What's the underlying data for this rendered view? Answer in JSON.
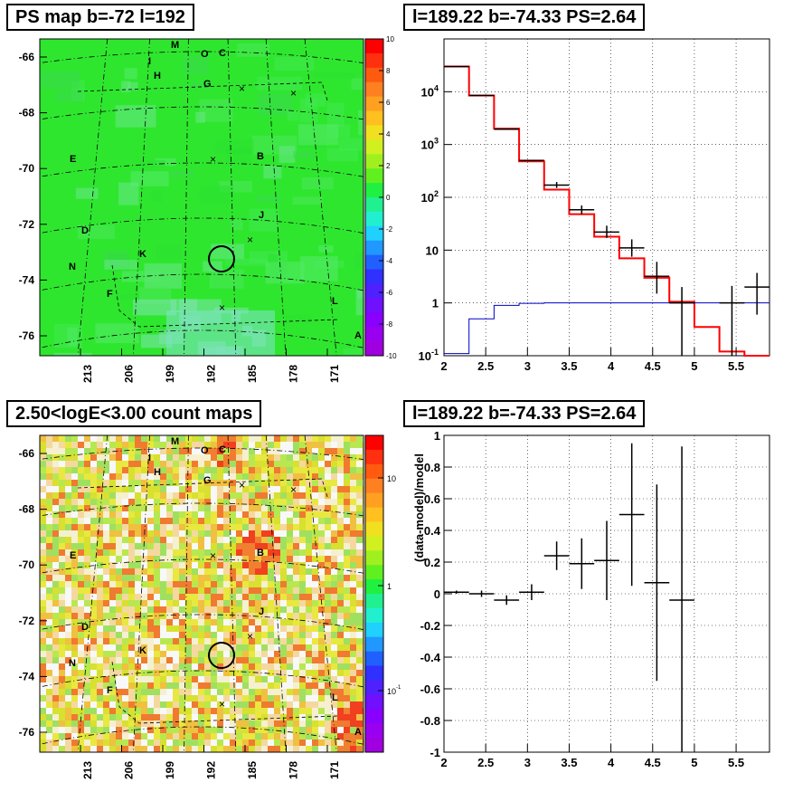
{
  "titles": {
    "tl": "PS map b=-72 l=192",
    "tr": "l=189.22 b=-74.33 PS=2.64",
    "bl": "2.50<logE<3.00 count maps",
    "br": "l=189.22 b=-74.33 PS=2.64"
  },
  "maps": {
    "y_ticks": [
      "-66",
      "-68",
      "-70",
      "-72",
      "-74",
      "-76"
    ],
    "x_ticks": [
      "213",
      "206",
      "199",
      "192",
      "185",
      "178",
      "171"
    ],
    "source_labels": [
      "M",
      "O",
      "C",
      "I",
      "H",
      "G",
      "E",
      "B",
      "J",
      "D",
      "K",
      "N",
      "F",
      "L",
      "A"
    ],
    "ps_colorbar_ticks": [
      "10",
      "8",
      "6",
      "4",
      "2",
      "0",
      "-2",
      "-4",
      "-6",
      "-8",
      "-10"
    ],
    "count_colorbar_ticks": [
      "10",
      "1",
      "10-1"
    ],
    "colors": {
      "ps_bg": "#2fe62f",
      "count_bg": "#d0e83a",
      "red": "#ff0000",
      "blue": "#0000c8"
    }
  },
  "chart_data": [
    {
      "type": "histogram",
      "title": "l=189.22 b=-74.33 PS=2.64",
      "xlim": [
        2,
        5.9
      ],
      "ylim": [
        0.1,
        100000
      ],
      "yscale": "log",
      "x_ticks": [
        "2",
        "2.5",
        "3",
        "3.5",
        "4",
        "4.5",
        "5",
        "5.5"
      ],
      "y_ticks": [
        "10-1",
        "1",
        "10",
        "102",
        "103",
        "104"
      ],
      "grid": true,
      "series": [
        {
          "color": "red",
          "edges": [
            2.0,
            2.3,
            2.6,
            2.9,
            3.2,
            3.5,
            3.8,
            4.1,
            4.4,
            4.7,
            5.0,
            5.3,
            5.6,
            5.9
          ],
          "values": [
            30000,
            8500,
            2000,
            480,
            140,
            48,
            18,
            7,
            3,
            1.05,
            0.35,
            0.12,
            0.07
          ]
        },
        {
          "color": "blue",
          "edges": [
            2.0,
            2.3,
            2.6,
            2.9,
            3.2,
            3.5,
            3.8,
            4.1,
            4.4,
            4.7,
            5.0,
            5.3,
            5.6,
            5.9
          ],
          "values": [
            0.11,
            0.5,
            0.9,
            0.98,
            1.0,
            1.0,
            1.0,
            1.0,
            1.0,
            1.0,
            1.0,
            1.0,
            1.0
          ]
        },
        {
          "color": "black",
          "points": [
            {
              "x": 2.15,
              "y": 30000,
              "dx": 0.15
            },
            {
              "x": 2.45,
              "y": 8500,
              "dx": 0.15
            },
            {
              "x": 2.75,
              "y": 1950,
              "dx": 0.15
            },
            {
              "x": 3.05,
              "y": 500,
              "dx": 0.15
            },
            {
              "x": 3.35,
              "y": 170,
              "dx": 0.15,
              "ylo": 150,
              "yhi": 195
            },
            {
              "x": 3.65,
              "y": 58,
              "dx": 0.15,
              "ylo": 48,
              "yhi": 70
            },
            {
              "x": 3.95,
              "y": 22,
              "dx": 0.15,
              "ylo": 17,
              "yhi": 29
            },
            {
              "x": 4.25,
              "y": 11,
              "dx": 0.15,
              "ylo": 7.5,
              "yhi": 16
            },
            {
              "x": 4.55,
              "y": 3.2,
              "dx": 0.15,
              "ylo": 1.5,
              "yhi": 6
            },
            {
              "x": 4.85,
              "y": 1.0,
              "dx": 0.15,
              "ylo": 0.1,
              "yhi": 2
            },
            {
              "x": 5.45,
              "y": 1.0,
              "dx": 0.15,
              "ylo": 0.1,
              "yhi": 2.1
            },
            {
              "x": 5.75,
              "y": 2.0,
              "dx": 0.15,
              "ylo": 0.6,
              "yhi": 3.7
            }
          ]
        }
      ]
    },
    {
      "type": "scatter",
      "title": "l=189.22 b=-74.33 PS=2.64",
      "ylabel": "(data-model)/model",
      "xlim": [
        2,
        5.9
      ],
      "ylim": [
        -1,
        1
      ],
      "x_ticks": [
        "2",
        "2.5",
        "3",
        "3.5",
        "4",
        "4.5",
        "5",
        "5.5"
      ],
      "y_ticks": [
        "1",
        "0.8",
        "0.6",
        "0.4",
        "0.2",
        "0",
        "-0.2",
        "-0.4",
        "-0.6",
        "-0.8",
        "-1"
      ],
      "grid": true,
      "points": [
        {
          "x": 2.15,
          "y": 0.01,
          "dx": 0.15,
          "ylo": 0.0,
          "yhi": 0.02
        },
        {
          "x": 2.45,
          "y": 0.0,
          "dx": 0.15,
          "ylo": -0.02,
          "yhi": 0.02
        },
        {
          "x": 2.75,
          "y": -0.04,
          "dx": 0.15,
          "ylo": -0.07,
          "yhi": -0.01
        },
        {
          "x": 3.05,
          "y": 0.01,
          "dx": 0.15,
          "ylo": -0.04,
          "yhi": 0.06
        },
        {
          "x": 3.35,
          "y": 0.24,
          "dx": 0.15,
          "ylo": 0.15,
          "yhi": 0.33
        },
        {
          "x": 3.65,
          "y": 0.19,
          "dx": 0.15,
          "ylo": 0.03,
          "yhi": 0.35
        },
        {
          "x": 3.95,
          "y": 0.21,
          "dx": 0.15,
          "ylo": -0.04,
          "yhi": 0.46
        },
        {
          "x": 4.25,
          "y": 0.5,
          "dx": 0.15,
          "ylo": 0.05,
          "yhi": 0.95
        },
        {
          "x": 4.55,
          "y": 0.07,
          "dx": 0.15,
          "ylo": -0.55,
          "yhi": 0.69
        },
        {
          "x": 4.85,
          "y": -0.04,
          "dx": 0.15,
          "ylo": -1.0,
          "yhi": 0.93
        }
      ]
    }
  ]
}
